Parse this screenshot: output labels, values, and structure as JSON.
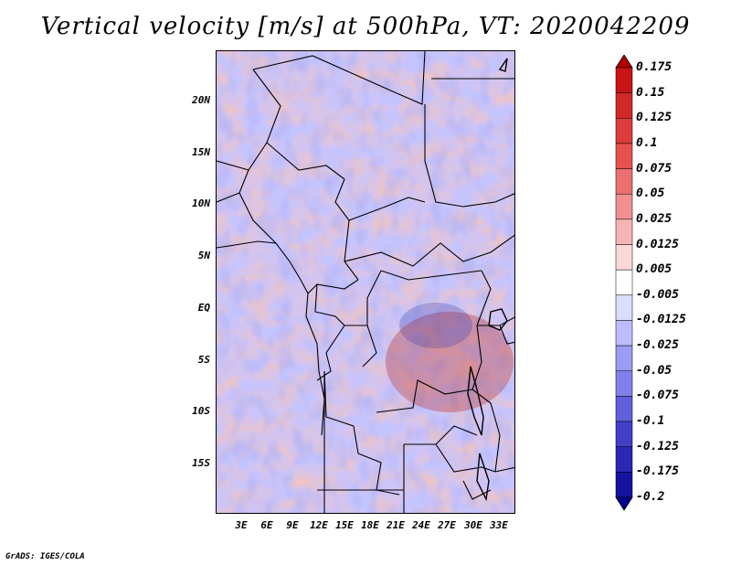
{
  "title": "Vertical velocity [m/s] at 500hPa, VT: 2020042209",
  "map": {
    "lat_ticks": [
      "20N",
      "15N",
      "10N",
      "5N",
      "EQ",
      "5S",
      "10S",
      "15S"
    ],
    "lon_ticks": [
      "3E",
      "6E",
      "9E",
      "12E",
      "15E",
      "18E",
      "21E",
      "24E",
      "27E",
      "30E",
      "33E"
    ]
  },
  "colorbar": {
    "labels": [
      "0.175",
      "0.15",
      "0.125",
      "0.1",
      "0.075",
      "0.05",
      "0.025",
      "0.0125",
      "0.005",
      "-0.005",
      "-0.0125",
      "-0.025",
      "-0.05",
      "-0.075",
      "-0.1",
      "-0.125",
      "-0.175",
      "-0.2"
    ],
    "colors": [
      "#b40000",
      "#c81414",
      "#d22828",
      "#dc3c3c",
      "#e65050",
      "#ec7070",
      "#f09090",
      "#f7b4b4",
      "#fbd8d8",
      "#ffffff",
      "#dcdcff",
      "#bcbcff",
      "#9c9cf4",
      "#8080ec",
      "#6060dc",
      "#4040c8",
      "#2828b4",
      "#1414a0",
      "#000090"
    ]
  },
  "credit": "GrADS: IGES/COLA"
}
